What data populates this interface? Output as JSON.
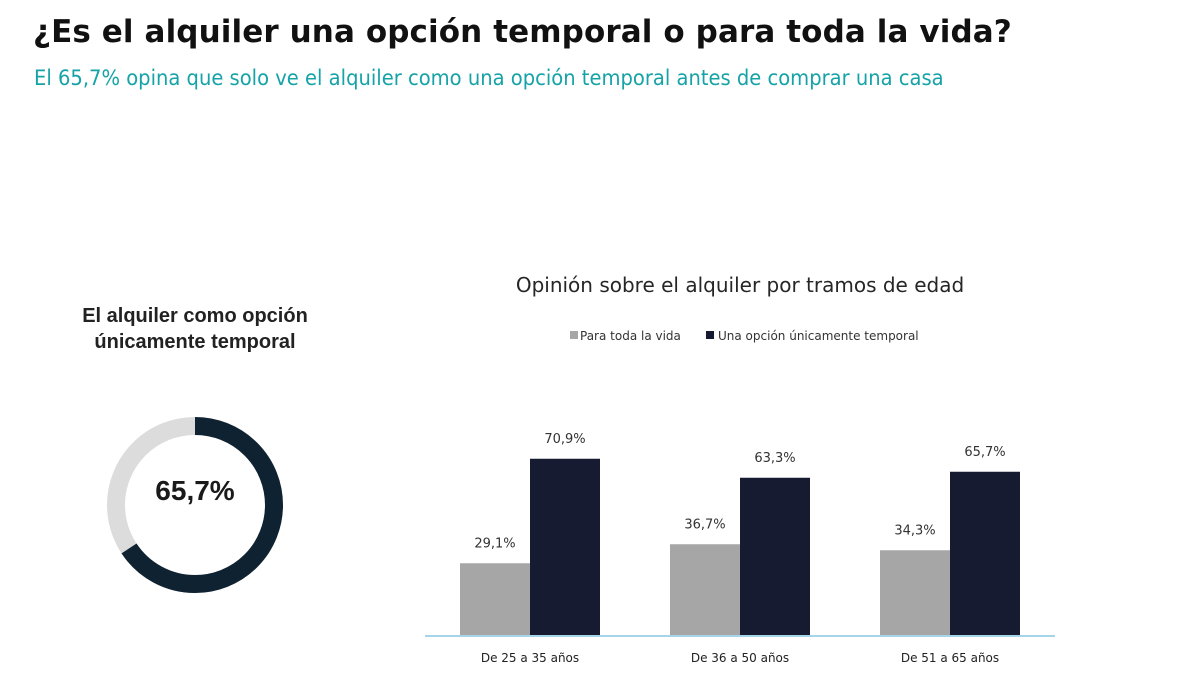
{
  "header": {
    "title": "¿Es el alquiler una opción temporal o para toda la vida?",
    "subtitle": "El 65,7% opina que solo ve el alquiler como una opción temporal antes de comprar una casa"
  },
  "colors": {
    "title": "#111111",
    "subtitle": "#16a3a8",
    "series_lifetime": "#a6a6a6",
    "series_temporal": "#171b31",
    "donut_track": "#dcdcdc",
    "donut_fill": "#0f2231",
    "axis": "#a6d5ea"
  },
  "donut": {
    "title": "El alquiler como opción únicamente temporal",
    "value": 65.7,
    "value_label": "65,7%"
  },
  "chart_data": [
    {
      "type": "bar",
      "title": "Opinión sobre el alquiler por tramos de edad",
      "categories": [
        "De 25 a 35 años",
        "De 36 a 50 años",
        "De 51 a 65 años"
      ],
      "series": [
        {
          "name": "Para toda la vida",
          "values": [
            29.1,
            36.7,
            34.3
          ],
          "labels": [
            "29,1%",
            "36,7%",
            "34,3%"
          ],
          "color": "#a6a6a6"
        },
        {
          "name": "Una opción únicamente temporal",
          "values": [
            70.9,
            63.3,
            65.7
          ],
          "labels": [
            "70,9%",
            "63,3%",
            "65,7%"
          ],
          "color": "#171b31"
        }
      ],
      "ylim": [
        0,
        100
      ],
      "grid": false,
      "legend": "top-center"
    },
    {
      "type": "pie",
      "title": "El alquiler como opción únicamente temporal",
      "values": [
        65.7,
        34.3
      ],
      "labels": [
        "65,7%",
        ""
      ],
      "colors": [
        "#0f2231",
        "#dcdcdc"
      ]
    }
  ]
}
